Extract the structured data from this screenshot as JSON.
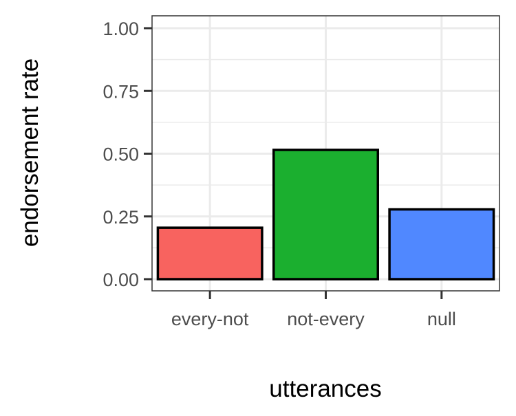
{
  "chart_data": {
    "type": "bar",
    "categories": [
      "every-not",
      "not-every",
      "null"
    ],
    "values": [
      0.205,
      0.515,
      0.278
    ],
    "colors": [
      "#F8635F",
      "#1BAF2F",
      "#5088FF"
    ],
    "xlabel": "utterances",
    "ylabel": "endorsement rate",
    "ylim": [
      0,
      1
    ],
    "yticks": [
      0,
      0.25,
      0.5,
      0.75,
      1.0
    ],
    "ytick_labels": [
      "0.00",
      "0.25",
      "0.50",
      "0.75",
      "1.00"
    ],
    "grid": true,
    "legend": "none",
    "bar_outline_color": "#000000",
    "grid_color": "#EBEBEB",
    "panel_border_color": "#333333"
  }
}
